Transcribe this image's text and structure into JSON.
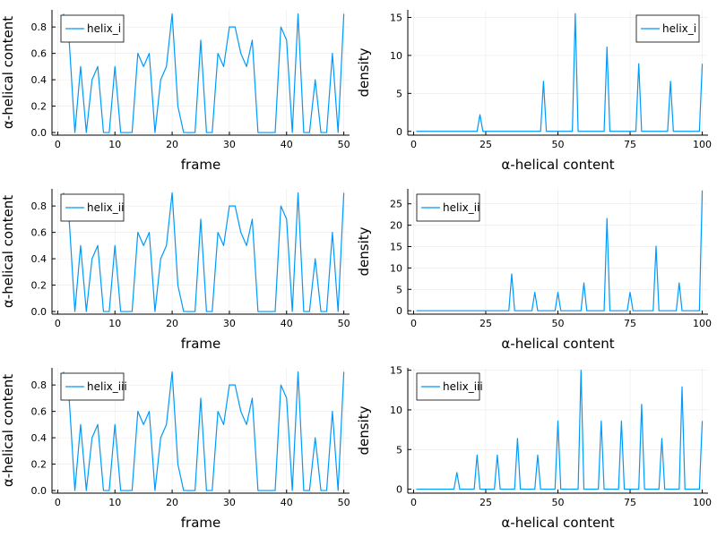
{
  "chart_data": [
    {
      "panel": "top-left",
      "type": "line",
      "xlabel": "frame",
      "ylabel": "α-helical content",
      "xlim": [
        -1,
        51
      ],
      "ylim": [
        -0.02,
        0.93
      ],
      "xticks": [
        0,
        10,
        20,
        30,
        40,
        50
      ],
      "xtick_labels": [
        "0",
        "10",
        "20",
        "30",
        "40",
        "50"
      ],
      "yticks": [
        0.0,
        0.2,
        0.4,
        0.6,
        0.8
      ],
      "ytick_labels": [
        "0.0",
        "0.2",
        "0.4",
        "0.6",
        "0.8"
      ],
      "legend_position": "top-left",
      "grid": true,
      "series": [
        {
          "name": "helix_i",
          "color": "#009AFA",
          "x": [
            1,
            2,
            3,
            4,
            5,
            6,
            7,
            8,
            9,
            10,
            11,
            12,
            13,
            14,
            15,
            16,
            17,
            18,
            19,
            20,
            21,
            22,
            23,
            24,
            25,
            26,
            27,
            28,
            29,
            30,
            31,
            32,
            33,
            34,
            35,
            36,
            37,
            38,
            39,
            40,
            41,
            42,
            43,
            44,
            45,
            46,
            47,
            48,
            49,
            50
          ],
          "y": [
            0.9,
            0.7,
            0.0,
            0.5,
            0.0,
            0.4,
            0.5,
            0.0,
            0.0,
            0.5,
            0.0,
            0.0,
            0.0,
            0.6,
            0.5,
            0.6,
            0.0,
            0.4,
            0.5,
            0.9,
            0.2,
            0.0,
            0.0,
            0.0,
            0.7,
            0.0,
            0.0,
            0.6,
            0.5,
            0.8,
            0.8,
            0.6,
            0.5,
            0.7,
            0.0,
            0.0,
            0.0,
            0.0,
            0.8,
            0.7,
            0.0,
            0.9,
            0.0,
            0.0,
            0.4,
            0.0,
            0.0,
            0.6,
            0.0,
            0.9
          ]
        }
      ]
    },
    {
      "panel": "top-right",
      "type": "line",
      "xlabel": "α-helical content",
      "ylabel": "density",
      "xlim": [
        -2,
        102
      ],
      "ylim": [
        -0.5,
        16
      ],
      "xticks": [
        0,
        25,
        50,
        75,
        100
      ],
      "xtick_labels": [
        "0",
        "25",
        "50",
        "75",
        "100"
      ],
      "yticks": [
        0,
        5,
        10,
        15
      ],
      "ytick_labels": [
        "0",
        "5",
        "10",
        "15"
      ],
      "legend_position": "top-right",
      "grid": true,
      "series": [
        {
          "name": "helix_i",
          "color": "#009AFA",
          "x": [
            1,
            22,
            23,
            24,
            44,
            45,
            46,
            55,
            56,
            57,
            66,
            67,
            68,
            77,
            78,
            79,
            88,
            89,
            90,
            99,
            100
          ],
          "y": [
            0,
            0,
            2.2,
            0,
            0,
            6.6,
            0,
            0,
            15.5,
            0,
            0,
            11.1,
            0,
            0,
            8.9,
            0,
            0,
            6.6,
            0,
            0,
            8.9
          ]
        }
      ]
    },
    {
      "panel": "middle-left",
      "type": "line",
      "xlabel": "frame",
      "ylabel": "α-helical content",
      "xlim": [
        -1,
        51
      ],
      "ylim": [
        -0.02,
        0.93
      ],
      "xticks": [
        0,
        10,
        20,
        30,
        40,
        50
      ],
      "xtick_labels": [
        "0",
        "10",
        "20",
        "30",
        "40",
        "50"
      ],
      "yticks": [
        0.0,
        0.2,
        0.4,
        0.6,
        0.8
      ],
      "ytick_labels": [
        "0.0",
        "0.2",
        "0.4",
        "0.6",
        "0.8"
      ],
      "legend_position": "top-left",
      "grid": true,
      "series": [
        {
          "name": "helix_ii",
          "color": "#009AFA",
          "x": [
            1,
            2,
            3,
            4,
            5,
            6,
            7,
            8,
            9,
            10,
            11,
            12,
            13,
            14,
            15,
            16,
            17,
            18,
            19,
            20,
            21,
            22,
            23,
            24,
            25,
            26,
            27,
            28,
            29,
            30,
            31,
            32,
            33,
            34,
            35,
            36,
            37,
            38,
            39,
            40,
            41,
            42,
            43,
            44,
            45,
            46,
            47,
            48,
            49,
            50
          ],
          "y": [
            0.9,
            0.7,
            0.0,
            0.5,
            0.0,
            0.4,
            0.5,
            0.0,
            0.0,
            0.5,
            0.0,
            0.0,
            0.0,
            0.6,
            0.5,
            0.6,
            0.0,
            0.4,
            0.5,
            0.9,
            0.2,
            0.0,
            0.0,
            0.0,
            0.7,
            0.0,
            0.0,
            0.6,
            0.5,
            0.8,
            0.8,
            0.6,
            0.5,
            0.7,
            0.0,
            0.0,
            0.0,
            0.0,
            0.8,
            0.7,
            0.0,
            0.9,
            0.0,
            0.0,
            0.4,
            0.0,
            0.0,
            0.6,
            0.0,
            0.9
          ]
        }
      ]
    },
    {
      "panel": "middle-right",
      "type": "line",
      "xlabel": "α-helical content",
      "ylabel": "density",
      "xlim": [
        -2,
        102
      ],
      "ylim": [
        -0.8,
        28.5
      ],
      "xticks": [
        0,
        25,
        50,
        75,
        100
      ],
      "xtick_labels": [
        "0",
        "25",
        "50",
        "75",
        "100"
      ],
      "yticks": [
        0,
        5,
        10,
        15,
        20,
        25
      ],
      "ytick_labels": [
        "0",
        "5",
        "10",
        "15",
        "20",
        "25"
      ],
      "legend_position": "top-left",
      "grid": true,
      "series": [
        {
          "name": "helix_ii",
          "color": "#009AFA",
          "x": [
            1,
            33,
            34,
            35,
            41,
            42,
            43,
            49,
            50,
            51,
            58,
            59,
            60,
            66,
            67,
            68,
            74,
            75,
            76,
            83,
            84,
            85,
            91,
            92,
            93,
            99,
            100
          ],
          "y": [
            0,
            0,
            8.6,
            0,
            0,
            4.3,
            0,
            0,
            4.3,
            0,
            0,
            6.5,
            0,
            0,
            21.6,
            0,
            0,
            4.3,
            0,
            0,
            15.1,
            0,
            0,
            6.5,
            0,
            0,
            28.1
          ]
        }
      ]
    },
    {
      "panel": "bottom-left",
      "type": "line",
      "xlabel": "frame",
      "ylabel": "α-helical content",
      "xlim": [
        -1,
        51
      ],
      "ylim": [
        -0.02,
        0.93
      ],
      "xticks": [
        0,
        10,
        20,
        30,
        40,
        50
      ],
      "xtick_labels": [
        "0",
        "10",
        "20",
        "30",
        "40",
        "50"
      ],
      "yticks": [
        0.0,
        0.2,
        0.4,
        0.6,
        0.8
      ],
      "ytick_labels": [
        "0.0",
        "0.2",
        "0.4",
        "0.6",
        "0.8"
      ],
      "legend_position": "top-left",
      "grid": true,
      "series": [
        {
          "name": "helix_iii",
          "color": "#009AFA",
          "x": [
            1,
            2,
            3,
            4,
            5,
            6,
            7,
            8,
            9,
            10,
            11,
            12,
            13,
            14,
            15,
            16,
            17,
            18,
            19,
            20,
            21,
            22,
            23,
            24,
            25,
            26,
            27,
            28,
            29,
            30,
            31,
            32,
            33,
            34,
            35,
            36,
            37,
            38,
            39,
            40,
            41,
            42,
            43,
            44,
            45,
            46,
            47,
            48,
            49,
            50
          ],
          "y": [
            0.9,
            0.7,
            0.0,
            0.5,
            0.0,
            0.4,
            0.5,
            0.0,
            0.0,
            0.5,
            0.0,
            0.0,
            0.0,
            0.6,
            0.5,
            0.6,
            0.0,
            0.4,
            0.5,
            0.9,
            0.2,
            0.0,
            0.0,
            0.0,
            0.7,
            0.0,
            0.0,
            0.6,
            0.5,
            0.8,
            0.8,
            0.6,
            0.5,
            0.7,
            0.0,
            0.0,
            0.0,
            0.0,
            0.8,
            0.7,
            0.0,
            0.9,
            0.0,
            0.0,
            0.4,
            0.0,
            0.0,
            0.6,
            0.0,
            0.9
          ]
        }
      ]
    },
    {
      "panel": "bottom-right",
      "type": "line",
      "xlabel": "α-helical content",
      "ylabel": "density",
      "xlim": [
        -2,
        102
      ],
      "ylim": [
        -0.5,
        15.3
      ],
      "xticks": [
        0,
        25,
        50,
        75,
        100
      ],
      "xtick_labels": [
        "0",
        "25",
        "50",
        "75",
        "100"
      ],
      "yticks": [
        0,
        5,
        10,
        15
      ],
      "ytick_labels": [
        "0",
        "5",
        "10",
        "15"
      ],
      "legend_position": "top-left",
      "grid": true,
      "series": [
        {
          "name": "helix_iii",
          "color": "#009AFA",
          "x": [
            1,
            14,
            15,
            16,
            21,
            22,
            23,
            28,
            29,
            30,
            35,
            36,
            37,
            42,
            43,
            44,
            49,
            50,
            51,
            57,
            58,
            59,
            64,
            65,
            66,
            71,
            72,
            73,
            78,
            79,
            80,
            85,
            86,
            87,
            92,
            93,
            94,
            99,
            100
          ],
          "y": [
            0,
            0,
            2.1,
            0,
            0,
            4.3,
            0,
            0,
            4.3,
            0,
            0,
            6.4,
            0,
            0,
            4.3,
            0,
            0,
            8.6,
            0,
            0,
            15.0,
            0,
            0,
            8.6,
            0,
            0,
            8.6,
            0,
            0,
            10.7,
            0,
            0,
            6.4,
            0,
            0,
            12.9,
            0,
            0,
            8.6
          ]
        }
      ]
    }
  ]
}
